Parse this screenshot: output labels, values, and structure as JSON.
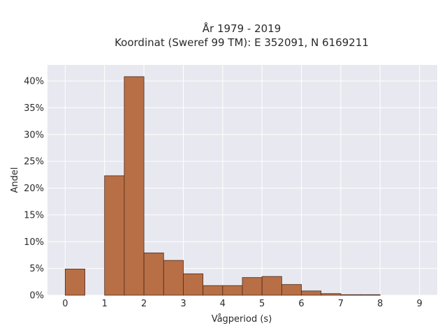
{
  "chart_data": {
    "type": "bar",
    "title": "År 1979 - 2019",
    "subtitle": "Koordinat (Sweref 99 TM): E 352091, N 6169211",
    "xlabel": "Vågperiod (s)",
    "ylabel": "Andel",
    "xlim": [
      -0.45,
      9.45
    ],
    "ylim": [
      0,
      0.43
    ],
    "x_ticks": [
      0,
      1,
      2,
      3,
      4,
      5,
      6,
      7,
      8,
      9
    ],
    "y_ticks": [
      0,
      0.05,
      0.1,
      0.15,
      0.2,
      0.25,
      0.3,
      0.35,
      0.4
    ],
    "y_tick_labels": [
      "0%",
      "5%",
      "10%",
      "15%",
      "20%",
      "25%",
      "30%",
      "35%",
      "40%"
    ],
    "bin_width": 0.5,
    "bins": [
      {
        "x0": 0.0,
        "value": 0.049
      },
      {
        "x0": 0.5,
        "value": 0.0
      },
      {
        "x0": 1.0,
        "value": 0.223
      },
      {
        "x0": 1.5,
        "value": 0.408
      },
      {
        "x0": 2.0,
        "value": 0.079
      },
      {
        "x0": 2.5,
        "value": 0.065
      },
      {
        "x0": 3.0,
        "value": 0.04
      },
      {
        "x0": 3.5,
        "value": 0.018
      },
      {
        "x0": 4.0,
        "value": 0.018
      },
      {
        "x0": 4.5,
        "value": 0.033
      },
      {
        "x0": 5.0,
        "value": 0.035
      },
      {
        "x0": 5.5,
        "value": 0.02
      },
      {
        "x0": 6.0,
        "value": 0.008
      },
      {
        "x0": 6.5,
        "value": 0.003
      },
      {
        "x0": 7.0,
        "value": 0.001
      },
      {
        "x0": 7.5,
        "value": 0.001
      },
      {
        "x0": 8.0,
        "value": 0.0
      },
      {
        "x0": 8.5,
        "value": 0.0
      }
    ],
    "grid": true,
    "colors": {
      "bar_fill": "#b86f46",
      "bar_edge": "#4a2a18",
      "plot_bg": "#e8e8f0",
      "grid": "#ffffff"
    }
  }
}
